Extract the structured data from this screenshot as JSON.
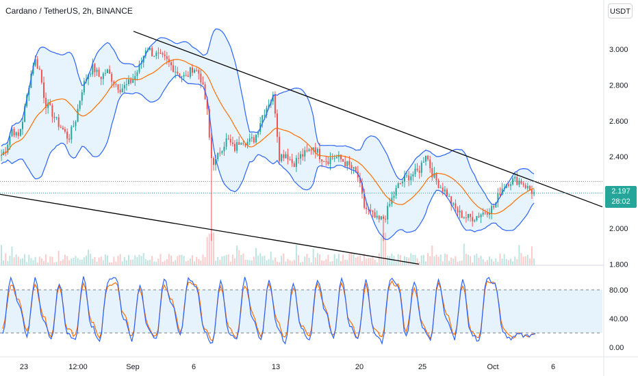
{
  "header": {
    "symbol_title": "Cardano / TetherUS, 2h, BINANCE",
    "currency": "USDT"
  },
  "price_tag": {
    "price": "2.197",
    "countdown": "28:02"
  },
  "colors": {
    "up": "#26a69a",
    "down": "#ef5350",
    "band": "#2962ff",
    "band_fill": "#e3f2fd",
    "basis": "#ff6d00",
    "stoch_k": "#2962ff",
    "stoch_d": "#ff6d00",
    "trendline": "#000000"
  },
  "chart_data": [
    {
      "type": "candlestick",
      "indicators": [
        "Bollinger Bands (upper, basis, lower)",
        "Volume",
        "Trendlines"
      ],
      "yticks": [
        "3.000",
        "2.800",
        "2.600",
        "2.400",
        "2.200",
        "2.000",
        "1.800"
      ],
      "ylim": [
        1.78,
        3.1
      ],
      "xticks": [
        "23",
        "12:00",
        "Sep",
        "6",
        "13",
        "20",
        "25",
        "Oct",
        "6"
      ],
      "last_price": 2.197,
      "reference_lines": [
        2.262,
        2.197
      ],
      "close_path": [
        [
          0,
          2.4
        ],
        [
          8,
          2.44
        ],
        [
          18,
          2.56
        ],
        [
          26,
          2.5
        ],
        [
          34,
          2.62
        ],
        [
          42,
          2.8
        ],
        [
          50,
          2.95
        ],
        [
          58,
          2.88
        ],
        [
          66,
          2.7
        ],
        [
          74,
          2.66
        ],
        [
          82,
          2.6
        ],
        [
          92,
          2.55
        ],
        [
          100,
          2.5
        ],
        [
          110,
          2.6
        ],
        [
          120,
          2.78
        ],
        [
          128,
          2.86
        ],
        [
          136,
          2.9
        ],
        [
          146,
          2.84
        ],
        [
          156,
          2.88
        ],
        [
          166,
          2.82
        ],
        [
          176,
          2.78
        ],
        [
          186,
          2.8
        ],
        [
          196,
          2.84
        ],
        [
          206,
          2.92
        ],
        [
          214,
          3.02
        ],
        [
          222,
          2.98
        ],
        [
          232,
          2.96
        ],
        [
          242,
          2.94
        ],
        [
          252,
          2.9
        ],
        [
          262,
          2.86
        ],
        [
          272,
          2.84
        ],
        [
          282,
          2.9
        ],
        [
          292,
          2.86
        ],
        [
          302,
          2.68
        ],
        [
          308,
          2.4
        ],
        [
          314,
          2.36
        ],
        [
          322,
          2.44
        ],
        [
          332,
          2.5
        ],
        [
          342,
          2.44
        ],
        [
          352,
          2.5
        ],
        [
          362,
          2.48
        ],
        [
          372,
          2.5
        ],
        [
          382,
          2.62
        ],
        [
          392,
          2.7
        ],
        [
          400,
          2.74
        ],
        [
          408,
          2.4
        ],
        [
          418,
          2.42
        ],
        [
          428,
          2.36
        ],
        [
          438,
          2.4
        ],
        [
          448,
          2.42
        ],
        [
          458,
          2.46
        ],
        [
          468,
          2.4
        ],
        [
          478,
          2.38
        ],
        [
          490,
          2.4
        ],
        [
          500,
          2.38
        ],
        [
          512,
          2.34
        ],
        [
          522,
          2.3
        ],
        [
          532,
          2.12
        ],
        [
          542,
          2.08
        ],
        [
          552,
          2.04
        ],
        [
          562,
          2.06
        ],
        [
          572,
          2.16
        ],
        [
          582,
          2.24
        ],
        [
          592,
          2.28
        ],
        [
          602,
          2.3
        ],
        [
          612,
          2.32
        ],
        [
          622,
          2.42
        ],
        [
          632,
          2.3
        ],
        [
          642,
          2.24
        ],
        [
          652,
          2.2
        ],
        [
          662,
          2.12
        ],
        [
          672,
          2.08
        ],
        [
          682,
          2.06
        ],
        [
          692,
          2.06
        ],
        [
          702,
          2.08
        ],
        [
          712,
          2.1
        ],
        [
          722,
          2.12
        ],
        [
          732,
          2.22
        ],
        [
          742,
          2.26
        ],
        [
          752,
          2.27
        ],
        [
          762,
          2.26
        ],
        [
          772,
          2.22
        ],
        [
          782,
          2.19
        ]
      ],
      "spikes": [
        {
          "x": 308,
          "low": 1.93
        },
        {
          "x": 560,
          "low": 1.93
        }
      ],
      "trendlines": [
        {
          "from": [
            195,
            3.1
          ],
          "to": [
            880,
            2.12
          ]
        },
        {
          "from": [
            0,
            2.19
          ],
          "to": [
            612,
            1.8
          ]
        }
      ]
    },
    {
      "type": "line",
      "indicator": "Stochastic RSI",
      "yticks": [
        "80.00",
        "40.00",
        "0.00"
      ],
      "ylim": [
        -5,
        105
      ],
      "band": [
        20,
        80
      ],
      "series": [
        {
          "role": "K",
          "values": [
            20,
            96,
            60,
            15,
            95,
            40,
            10,
            90,
            20,
            12,
            96,
            30,
            8,
            92,
            96,
            40,
            10,
            88,
            25,
            10,
            94,
            60,
            15,
            96,
            85,
            20,
            5,
            94,
            20,
            10,
            95,
            40,
            12,
            96,
            30,
            8,
            90,
            25,
            10,
            95,
            50,
            12,
            96,
            30,
            10,
            92,
            20,
            8,
            96,
            85,
            15,
            90,
            30,
            10,
            96,
            40,
            12,
            94,
            20,
            10,
            96,
            90,
            20,
            12,
            18,
            15,
            20
          ]
        },
        {
          "role": "D",
          "values": [
            25,
            88,
            65,
            20,
            88,
            45,
            15,
            84,
            28,
            16,
            88,
            36,
            12,
            86,
            90,
            46,
            15,
            82,
            30,
            14,
            87,
            64,
            20,
            90,
            86,
            26,
            10,
            88,
            26,
            14,
            88,
            45,
            16,
            90,
            36,
            12,
            84,
            30,
            14,
            88,
            54,
            16,
            90,
            36,
            14,
            86,
            26,
            12,
            90,
            86,
            20,
            84,
            35,
            14,
            90,
            46,
            16,
            88,
            26,
            14,
            90,
            88,
            26,
            15,
            17,
            16,
            18
          ]
        }
      ]
    }
  ]
}
